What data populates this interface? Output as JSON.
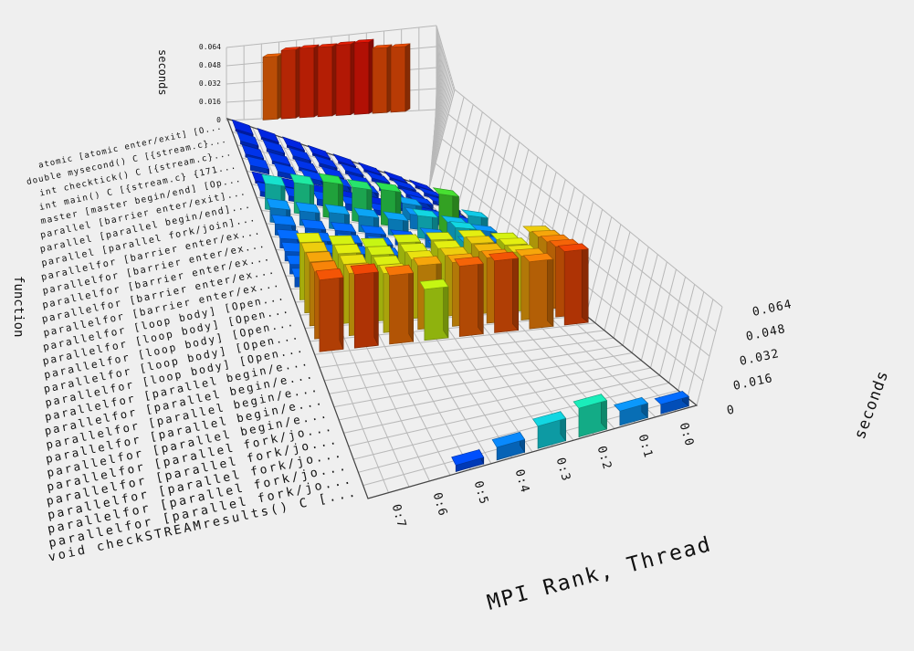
{
  "chart_data": {
    "type": "bar3d",
    "x_axis_label": "MPI Rank, Thread",
    "y_axis_label": "function",
    "z_axis_label": "seconds",
    "z_ticks": [
      "0",
      "0.016",
      "0.032",
      "0.048",
      "0.064"
    ],
    "inset_z_label": "seconds",
    "inset_z_ticks": [
      "0",
      "0.016",
      "0.032",
      "0.048",
      "0.064"
    ],
    "z_range": [
      0,
      0.064
    ],
    "threads": [
      "0:0",
      "0:1",
      "0:2",
      "0:3",
      "0:4",
      "0:5",
      "0:6",
      "0:7"
    ],
    "functions": [
      "atomic [atomic enter/exit] [O...",
      "double mysecond() C [{stream.c}...",
      "int checktick() C [{stream.c}...",
      "int main() C [{stream.c} {171...",
      "master [master begin/end] [Op...",
      "parallel [barrier enter/exit]...",
      "parallel [parallel begin/end]...",
      "parallel [parallel fork/join]...",
      "parallelfor [barrier enter/ex...",
      "parallelfor [barrier enter/ex...",
      "parallelfor [barrier enter/ex...",
      "parallelfor [barrier enter/ex...",
      "parallelfor [barrier enter/ex...",
      "parallelfor [loop body] [Open...",
      "parallelfor [loop body] [Open...",
      "parallelfor [loop body] [Open...",
      "parallelfor [loop body] [Open...",
      "parallelfor [loop body] [Open...",
      "parallelfor [parallel begin/e...",
      "parallelfor [parallel begin/e...",
      "parallelfor [parallel begin/e...",
      "parallelfor [parallel begin/e...",
      "parallelfor [parallel begin/e...",
      "parallelfor [parallel fork/jo...",
      "parallelfor [parallel fork/jo...",
      "parallelfor [parallel fork/jo...",
      "parallelfor [parallel fork/jo...",
      "parallelfor [parallel fork/jo...",
      "void checkSTREAMresults() C [..."
    ],
    "inset_values": [
      0.058,
      0.063,
      0.064,
      0.064,
      0.065,
      0.066,
      0.06,
      0.06
    ],
    "values_by_function": [
      [
        0.001,
        0.001,
        0.001,
        0.001,
        0.001,
        0.001,
        0.001,
        0.001
      ],
      [
        0.002,
        0.002,
        0.002,
        0.002,
        0.002,
        0.002,
        0.002,
        0.002
      ],
      [
        0.002,
        0.002,
        0.002,
        0.002,
        0.002,
        0.002,
        0.002,
        0.002
      ],
      [
        0.003,
        0.003,
        0.003,
        0.003,
        0.003,
        0.003,
        0.003,
        0.003
      ],
      [
        0.001,
        0.001,
        0.001,
        0.001,
        0.001,
        0.001,
        0.001,
        0.001
      ],
      [
        0.004,
        0.005,
        0.01,
        0.003,
        0.004,
        0.004,
        0.003,
        0.003
      ],
      [
        0.013,
        0.024,
        0.009,
        0.022,
        0.021,
        0.022,
        0.019,
        0.016
      ],
      [
        0.009,
        0.012,
        0.014,
        0.01,
        0.01,
        0.01,
        0.009,
        0.009
      ],
      [
        0.007,
        0.014,
        0.008,
        0.005,
        0.006,
        0.006,
        0.006,
        0.007
      ],
      [
        0.006,
        0.01,
        0.006,
        0.006,
        0.006,
        0.006,
        0.006,
        0.006
      ],
      [
        0.006,
        0.01,
        0.007,
        0.006,
        0.006,
        0.006,
        0.006,
        0.006
      ],
      [
        0.006,
        0.009,
        0.006,
        0.006,
        0.006,
        0.006,
        0.006,
        0.006
      ],
      [
        0.006,
        0.01,
        0.006,
        0.006,
        0.006,
        0.006,
        0.006,
        0.006
      ],
      [
        0.038,
        0.034,
        0.036,
        0.035,
        0.034,
        0.032,
        0.034,
        0.036
      ],
      [
        0.04,
        0.036,
        0.038,
        0.036,
        0.035,
        0.034,
        0.036,
        0.038
      ],
      [
        0.042,
        0.037,
        0.039,
        0.038,
        0.037,
        0.035,
        0.037,
        0.04
      ],
      [
        0.044,
        0.04,
        0.041,
        0.04,
        0.04,
        0.037,
        0.039,
        0.042
      ],
      [
        0.046,
        0.042,
        0.045,
        0.044,
        0.032,
        0.043,
        0.046,
        0.045
      ],
      [
        0,
        0,
        0,
        0,
        0,
        0,
        0,
        0
      ],
      [
        0,
        0,
        0,
        0,
        0,
        0,
        0,
        0
      ],
      [
        0,
        0,
        0,
        0,
        0,
        0,
        0,
        0
      ],
      [
        0,
        0,
        0,
        0,
        0,
        0,
        0,
        0
      ],
      [
        0,
        0,
        0,
        0,
        0,
        0,
        0,
        0
      ],
      [
        0,
        0,
        0,
        0,
        0,
        0,
        0,
        0
      ],
      [
        0,
        0,
        0,
        0,
        0,
        0,
        0,
        0
      ],
      [
        0,
        0,
        0,
        0,
        0,
        0,
        0,
        0
      ],
      [
        0,
        0,
        0,
        0,
        0,
        0,
        0,
        0
      ],
      [
        0,
        0,
        0,
        0,
        0,
        0,
        0,
        0
      ],
      [
        0.006,
        0.009,
        0.018,
        0.014,
        0.008,
        0.004,
        0,
        0
      ]
    ],
    "colormap": [
      "#0015c8",
      "#0050ee",
      "#0a8ee8",
      "#10c4d4",
      "#18dcaa",
      "#2ccc3a",
      "#7ad80c",
      "#b6e412",
      "#d6dc10",
      "#e88a08",
      "#e04806",
      "#d81406"
    ],
    "grid": true
  }
}
